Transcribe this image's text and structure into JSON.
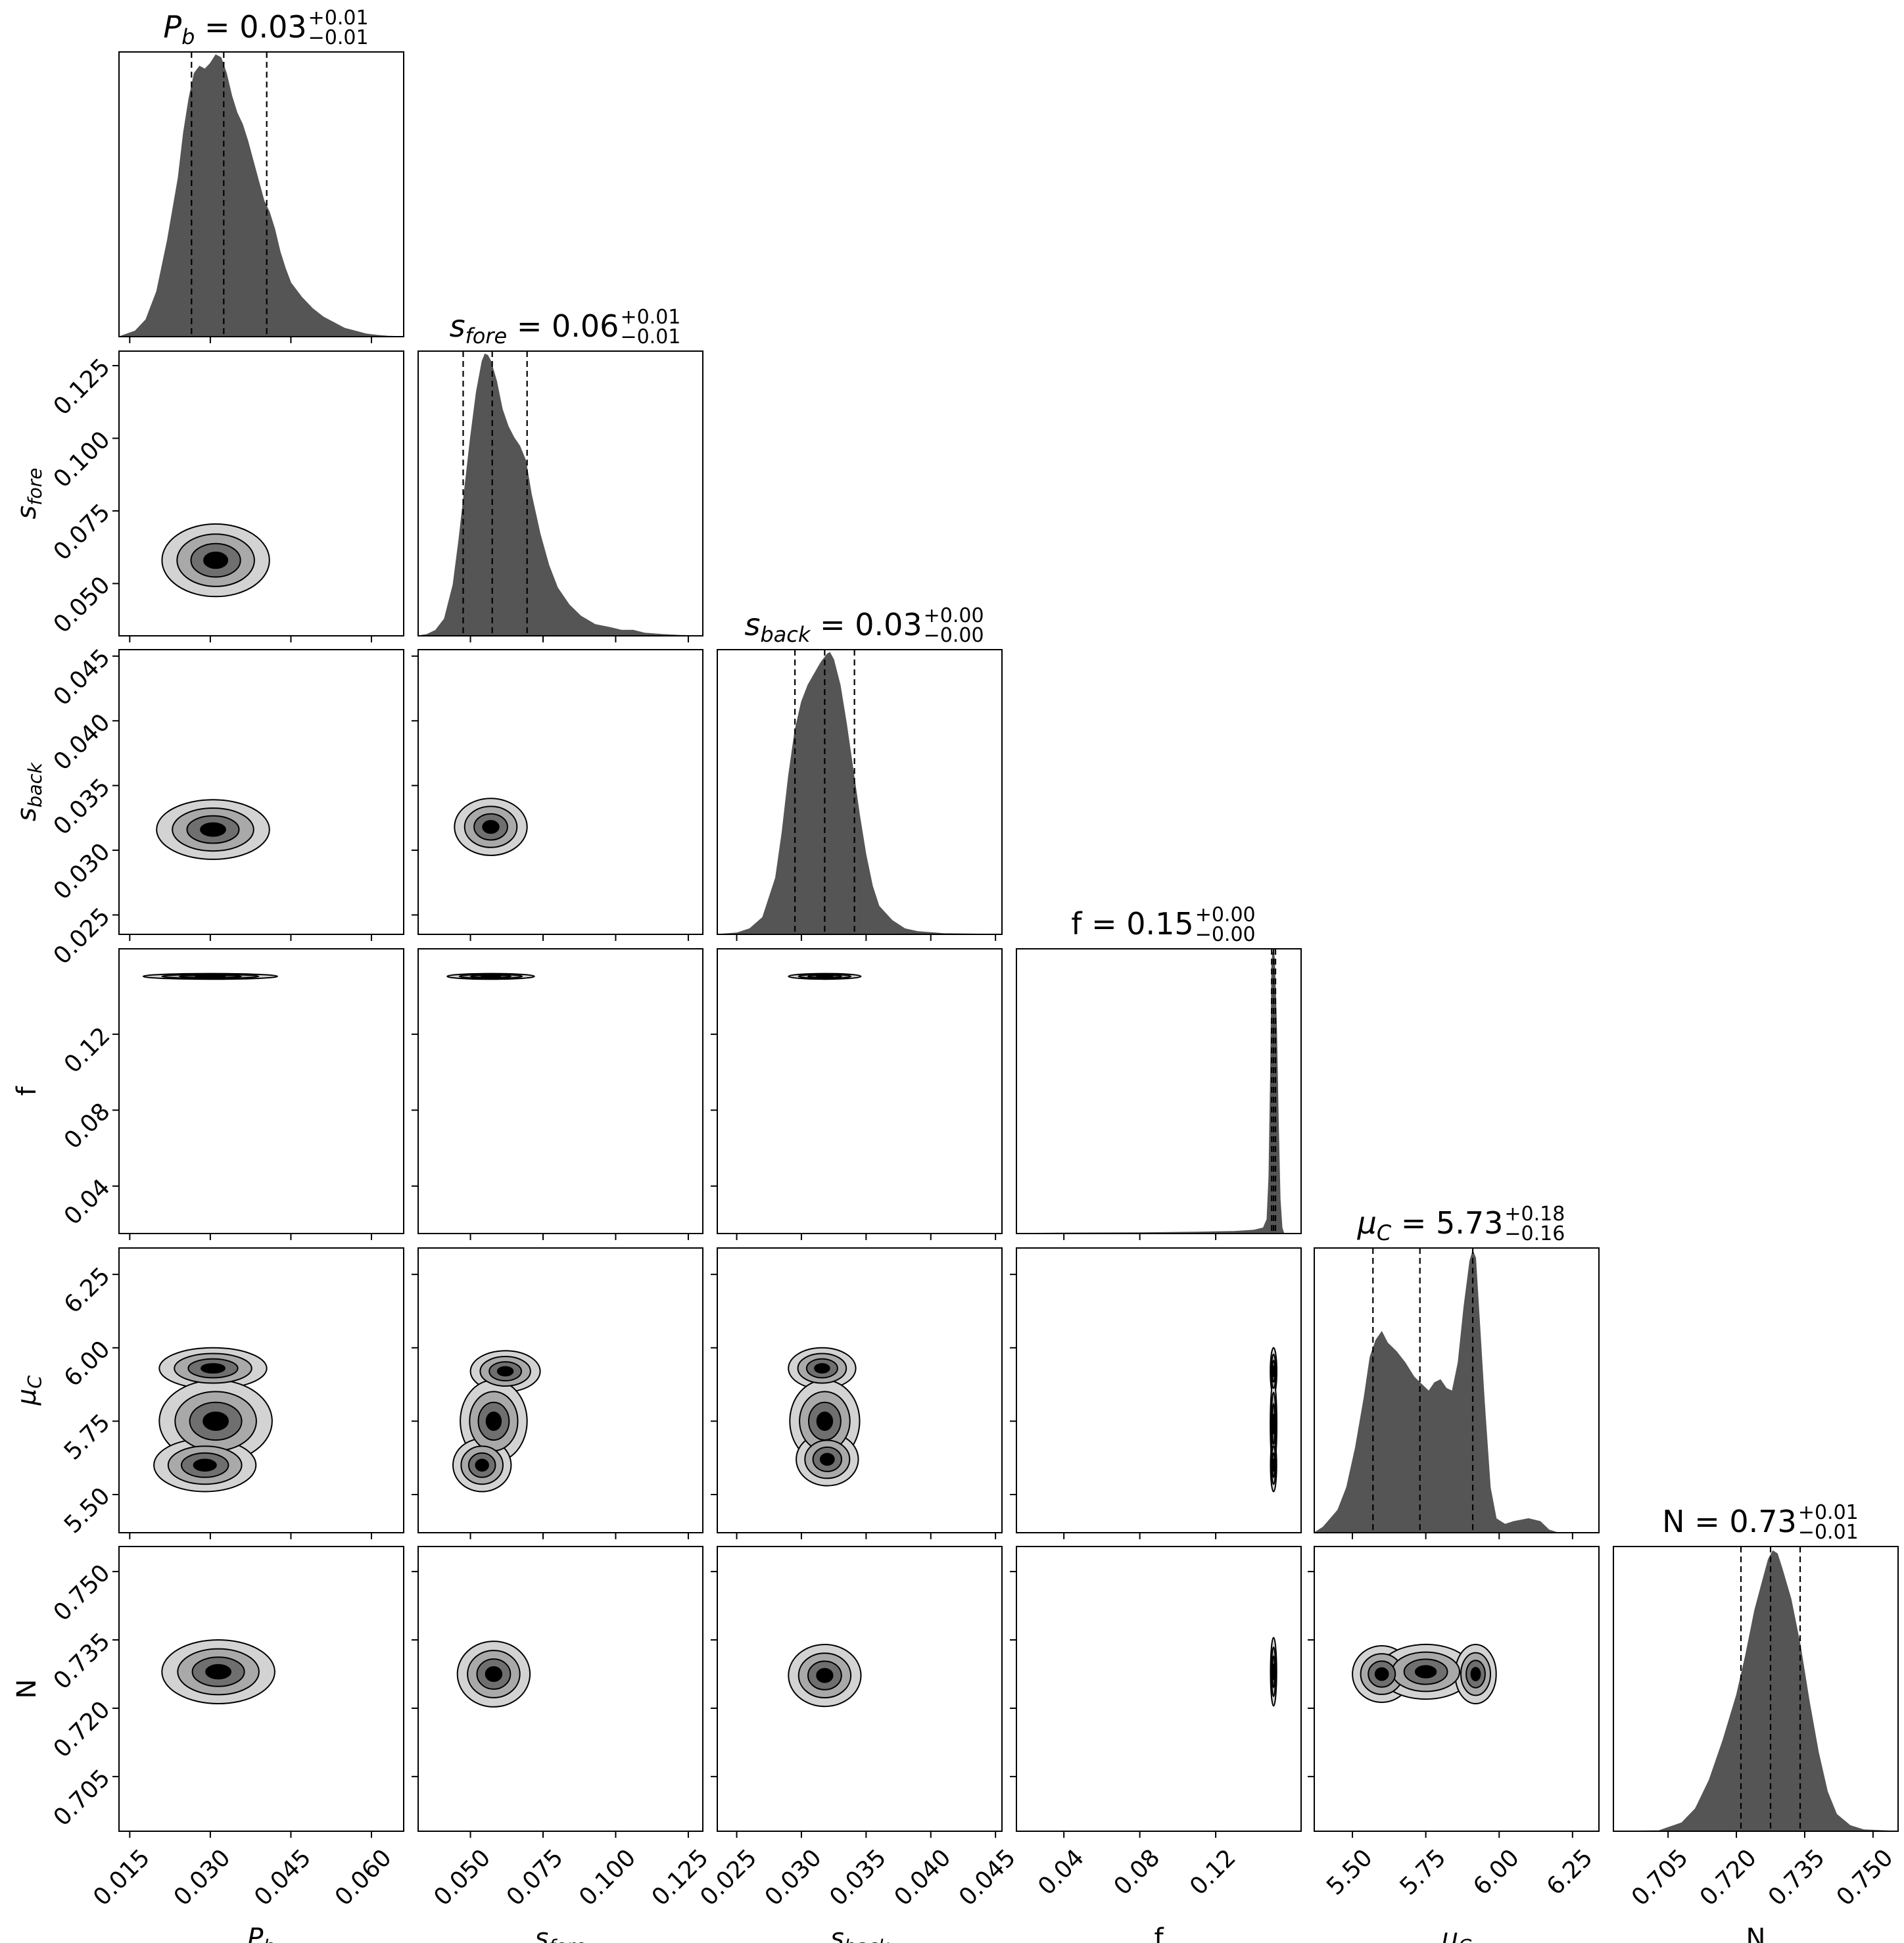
{
  "chart_data": {
    "type": "corner",
    "parameters": [
      {
        "id": "Pb",
        "label": "P",
        "sub": "b",
        "italic": true,
        "range": [
          0.013,
          0.066
        ],
        "ticks": [
          "0.015",
          "0.030",
          "0.045",
          "0.060"
        ],
        "tick_values": [
          0.015,
          0.03,
          0.045,
          0.06
        ],
        "median": 0.0325,
        "q16": 0.0265,
        "q84": 0.0405,
        "title_value": "0.03",
        "title_plus": "+0.01",
        "title_minus": "−0.01"
      },
      {
        "id": "sfore",
        "label": "s",
        "sub": "fore",
        "italic": true,
        "range": [
          0.032,
          0.13
        ],
        "ticks": [
          "0.050",
          "0.075",
          "0.100",
          "0.125"
        ],
        "tick_values": [
          0.05,
          0.075,
          0.1,
          0.125
        ],
        "median": 0.0575,
        "q16": 0.0475,
        "q84": 0.0695,
        "title_value": "0.06",
        "title_plus": "+0.01",
        "title_minus": "−0.01"
      },
      {
        "id": "sback",
        "label": "s",
        "sub": "back",
        "italic": true,
        "range": [
          0.0235,
          0.0455
        ],
        "ticks": [
          "0.025",
          "0.030",
          "0.035",
          "0.040",
          "0.045"
        ],
        "tick_values": [
          0.025,
          0.03,
          0.035,
          0.04,
          0.045
        ],
        "median": 0.0318,
        "q16": 0.0295,
        "q84": 0.0341,
        "title_value": "0.03",
        "title_plus": "+0.00",
        "title_minus": "−0.00"
      },
      {
        "id": "f",
        "label": "f",
        "sub": "",
        "italic": false,
        "range": [
          0.015,
          0.165
        ],
        "ticks": [
          "0.04",
          "0.08",
          "0.12"
        ],
        "tick_values": [
          0.04,
          0.08,
          0.12
        ],
        "median": 0.1505,
        "q16": 0.1495,
        "q84": 0.1515,
        "title_value": "0.15",
        "title_plus": "+0.00",
        "title_minus": "−0.00"
      },
      {
        "id": "muC",
        "label": "μ",
        "sub": "C",
        "italic": true,
        "range": [
          5.37,
          6.34
        ],
        "ticks": [
          "5.50",
          "5.75",
          "6.00",
          "6.25"
        ],
        "tick_values": [
          5.5,
          5.75,
          6.0,
          6.25
        ],
        "median": 5.73,
        "q16": 5.57,
        "q84": 5.91,
        "title_value": "5.73",
        "title_plus": "+0.18",
        "title_minus": "−0.16"
      },
      {
        "id": "N",
        "label": "N",
        "sub": "",
        "italic": false,
        "range": [
          0.693,
          0.7555
        ],
        "ticks": [
          "0.705",
          "0.720",
          "0.735",
          "0.750"
        ],
        "tick_values": [
          0.705,
          0.72,
          0.735,
          0.75
        ],
        "median": 0.7275,
        "q16": 0.721,
        "q84": 0.734,
        "title_value": "0.73",
        "title_plus": "+0.01",
        "title_minus": "−0.01"
      }
    ],
    "histograms": [
      [
        [
          0.013,
          0
        ],
        [
          0.016,
          0.02
        ],
        [
          0.018,
          0.06
        ],
        [
          0.02,
          0.16
        ],
        [
          0.022,
          0.34
        ],
        [
          0.024,
          0.56
        ],
        [
          0.025,
          0.72
        ],
        [
          0.026,
          0.84
        ],
        [
          0.027,
          0.93
        ],
        [
          0.028,
          0.955
        ],
        [
          0.029,
          0.945
        ],
        [
          0.03,
          0.965
        ],
        [
          0.031,
          0.995
        ],
        [
          0.032,
          0.985
        ],
        [
          0.033,
          0.93
        ],
        [
          0.034,
          0.85
        ],
        [
          0.035,
          0.79
        ],
        [
          0.036,
          0.75
        ],
        [
          0.037,
          0.69
        ],
        [
          0.038,
          0.62
        ],
        [
          0.039,
          0.55
        ],
        [
          0.04,
          0.48
        ],
        [
          0.041,
          0.44
        ],
        [
          0.042,
          0.38
        ],
        [
          0.043,
          0.3
        ],
        [
          0.044,
          0.24
        ],
        [
          0.045,
          0.19
        ],
        [
          0.047,
          0.14
        ],
        [
          0.049,
          0.1
        ],
        [
          0.051,
          0.07
        ],
        [
          0.053,
          0.05
        ],
        [
          0.055,
          0.03
        ],
        [
          0.057,
          0.02
        ],
        [
          0.059,
          0.01
        ],
        [
          0.061,
          0.005
        ],
        [
          0.063,
          0.002
        ],
        [
          0.066,
          0
        ]
      ],
      [
        [
          0.032,
          0
        ],
        [
          0.035,
          0.005
        ],
        [
          0.038,
          0.02
        ],
        [
          0.041,
          0.06
        ],
        [
          0.044,
          0.18
        ],
        [
          0.046,
          0.34
        ],
        [
          0.048,
          0.52
        ],
        [
          0.05,
          0.7
        ],
        [
          0.052,
          0.86
        ],
        [
          0.054,
          0.97
        ],
        [
          0.055,
          0.995
        ],
        [
          0.056,
          0.99
        ],
        [
          0.057,
          0.97
        ],
        [
          0.059,
          0.9
        ],
        [
          0.061,
          0.8
        ],
        [
          0.063,
          0.74
        ],
        [
          0.065,
          0.7
        ],
        [
          0.067,
          0.67
        ],
        [
          0.069,
          0.62
        ],
        [
          0.071,
          0.5
        ],
        [
          0.074,
          0.36
        ],
        [
          0.077,
          0.25
        ],
        [
          0.08,
          0.17
        ],
        [
          0.084,
          0.11
        ],
        [
          0.088,
          0.07
        ],
        [
          0.093,
          0.04
        ],
        [
          0.098,
          0.03
        ],
        [
          0.102,
          0.02
        ],
        [
          0.106,
          0.02
        ],
        [
          0.11,
          0.01
        ],
        [
          0.116,
          0.005
        ],
        [
          0.122,
          0.002
        ],
        [
          0.13,
          0
        ]
      ],
      [
        [
          0.0235,
          0
        ],
        [
          0.025,
          0.005
        ],
        [
          0.026,
          0.02
        ],
        [
          0.027,
          0.06
        ],
        [
          0.028,
          0.2
        ],
        [
          0.0285,
          0.36
        ],
        [
          0.029,
          0.56
        ],
        [
          0.0295,
          0.72
        ],
        [
          0.03,
          0.82
        ],
        [
          0.0305,
          0.88
        ],
        [
          0.031,
          0.92
        ],
        [
          0.0315,
          0.96
        ],
        [
          0.032,
          0.99
        ],
        [
          0.0322,
          0.995
        ],
        [
          0.0325,
          0.97
        ],
        [
          0.033,
          0.88
        ],
        [
          0.0335,
          0.74
        ],
        [
          0.034,
          0.58
        ],
        [
          0.0345,
          0.42
        ],
        [
          0.035,
          0.28
        ],
        [
          0.0355,
          0.17
        ],
        [
          0.036,
          0.1
        ],
        [
          0.037,
          0.05
        ],
        [
          0.038,
          0.02
        ],
        [
          0.039,
          0.01
        ],
        [
          0.041,
          0.003
        ],
        [
          0.0455,
          0
        ]
      ],
      [
        [
          0.015,
          0
        ],
        [
          0.02,
          0.001
        ],
        [
          0.04,
          0.002
        ],
        [
          0.08,
          0.003
        ],
        [
          0.11,
          0.005
        ],
        [
          0.13,
          0.008
        ],
        [
          0.14,
          0.012
        ],
        [
          0.145,
          0.02
        ],
        [
          0.147,
          0.05
        ],
        [
          0.148,
          0.2
        ],
        [
          0.149,
          0.62
        ],
        [
          0.1495,
          0.95
        ],
        [
          0.15,
          0.99
        ],
        [
          0.1505,
          1.0
        ],
        [
          0.151,
          0.97
        ],
        [
          0.152,
          0.75
        ],
        [
          0.153,
          0.4
        ],
        [
          0.154,
          0.12
        ],
        [
          0.155,
          0.02
        ],
        [
          0.156,
          0
        ]
      ],
      [
        [
          5.37,
          0
        ],
        [
          5.4,
          0.02
        ],
        [
          5.45,
          0.08
        ],
        [
          5.48,
          0.16
        ],
        [
          5.51,
          0.3
        ],
        [
          5.54,
          0.48
        ],
        [
          5.56,
          0.62
        ],
        [
          5.58,
          0.68
        ],
        [
          5.6,
          0.71
        ],
        [
          5.62,
          0.67
        ],
        [
          5.65,
          0.64
        ],
        [
          5.68,
          0.6
        ],
        [
          5.71,
          0.55
        ],
        [
          5.74,
          0.52
        ],
        [
          5.76,
          0.5
        ],
        [
          5.78,
          0.53
        ],
        [
          5.8,
          0.54
        ],
        [
          5.82,
          0.51
        ],
        [
          5.84,
          0.5
        ],
        [
          5.86,
          0.6
        ],
        [
          5.88,
          0.8
        ],
        [
          5.9,
          0.96
        ],
        [
          5.91,
          0.995
        ],
        [
          5.92,
          0.97
        ],
        [
          5.93,
          0.8
        ],
        [
          5.95,
          0.46
        ],
        [
          5.97,
          0.16
        ],
        [
          5.99,
          0.05
        ],
        [
          6.02,
          0.03
        ],
        [
          6.05,
          0.04
        ],
        [
          6.1,
          0.05
        ],
        [
          6.14,
          0.04
        ],
        [
          6.17,
          0.01
        ],
        [
          6.2,
          0
        ]
      ],
      [
        [
          0.693,
          0
        ],
        [
          0.703,
          0.002
        ],
        [
          0.708,
          0.03
        ],
        [
          0.711,
          0.08
        ],
        [
          0.714,
          0.18
        ],
        [
          0.717,
          0.32
        ],
        [
          0.72,
          0.48
        ],
        [
          0.722,
          0.62
        ],
        [
          0.724,
          0.78
        ],
        [
          0.726,
          0.9
        ],
        [
          0.727,
          0.96
        ],
        [
          0.728,
          0.99
        ],
        [
          0.729,
          0.98
        ],
        [
          0.73,
          0.93
        ],
        [
          0.732,
          0.82
        ],
        [
          0.734,
          0.66
        ],
        [
          0.736,
          0.46
        ],
        [
          0.738,
          0.28
        ],
        [
          0.74,
          0.14
        ],
        [
          0.742,
          0.06
        ],
        [
          0.745,
          0.02
        ],
        [
          0.748,
          0.005
        ],
        [
          0.7555,
          0
        ]
      ]
    ],
    "contour_levels": [
      "#d3d3d3",
      "#a9a9a9",
      "#6f6f6f",
      "#000000"
    ],
    "pairs": [
      {
        "x": 0,
        "y": 1,
        "blobs": [
          {
            "cx": 0.031,
            "cy": 0.058,
            "rx": 0.01,
            "ry": 0.0125
          }
        ]
      },
      {
        "x": 0,
        "y": 2,
        "blobs": [
          {
            "cx": 0.0305,
            "cy": 0.0316,
            "rx": 0.0105,
            "ry": 0.0023
          }
        ]
      },
      {
        "x": 1,
        "y": 2,
        "blobs": [
          {
            "cx": 0.057,
            "cy": 0.0318,
            "rx": 0.0125,
            "ry": 0.0022
          }
        ]
      },
      {
        "x": 0,
        "y": 3,
        "blobs": [
          {
            "cx": 0.03,
            "cy": 0.1505,
            "rx": 0.0125,
            "ry": 0.0015
          }
        ]
      },
      {
        "x": 1,
        "y": 3,
        "blobs": [
          {
            "cx": 0.057,
            "cy": 0.1505,
            "rx": 0.015,
            "ry": 0.0015
          }
        ]
      },
      {
        "x": 2,
        "y": 3,
        "blobs": [
          {
            "cx": 0.0318,
            "cy": 0.1505,
            "rx": 0.0028,
            "ry": 0.0015
          }
        ]
      },
      {
        "x": 0,
        "y": 4,
        "blobs": [
          {
            "cx": 0.0305,
            "cy": 5.93,
            "rx": 0.01,
            "ry": 0.07
          },
          {
            "cx": 0.031,
            "cy": 5.75,
            "rx": 0.0105,
            "ry": 0.14
          },
          {
            "cx": 0.029,
            "cy": 5.6,
            "rx": 0.0095,
            "ry": 0.09
          }
        ]
      },
      {
        "x": 1,
        "y": 4,
        "blobs": [
          {
            "cx": 0.062,
            "cy": 5.92,
            "rx": 0.012,
            "ry": 0.07
          },
          {
            "cx": 0.058,
            "cy": 5.75,
            "rx": 0.0115,
            "ry": 0.14
          },
          {
            "cx": 0.054,
            "cy": 5.6,
            "rx": 0.01,
            "ry": 0.09
          }
        ]
      },
      {
        "x": 2,
        "y": 4,
        "blobs": [
          {
            "cx": 0.0316,
            "cy": 5.93,
            "rx": 0.0026,
            "ry": 0.07
          },
          {
            "cx": 0.0318,
            "cy": 5.75,
            "rx": 0.0027,
            "ry": 0.14
          },
          {
            "cx": 0.032,
            "cy": 5.62,
            "rx": 0.0024,
            "ry": 0.09
          }
        ]
      },
      {
        "x": 3,
        "y": 4,
        "blobs": [
          {
            "cx": 0.1505,
            "cy": 5.92,
            "rx": 0.0017,
            "ry": 0.08
          },
          {
            "cx": 0.1505,
            "cy": 5.74,
            "rx": 0.0017,
            "ry": 0.15
          },
          {
            "cx": 0.1505,
            "cy": 5.6,
            "rx": 0.0016,
            "ry": 0.09
          }
        ]
      },
      {
        "x": 0,
        "y": 5,
        "blobs": [
          {
            "cx": 0.0315,
            "cy": 0.728,
            "rx": 0.0105,
            "ry": 0.007
          }
        ]
      },
      {
        "x": 1,
        "y": 5,
        "blobs": [
          {
            "cx": 0.058,
            "cy": 0.7275,
            "rx": 0.0125,
            "ry": 0.0072
          }
        ]
      },
      {
        "x": 2,
        "y": 5,
        "blobs": [
          {
            "cx": 0.0318,
            "cy": 0.7272,
            "rx": 0.0028,
            "ry": 0.0068
          }
        ]
      },
      {
        "x": 3,
        "y": 5,
        "blobs": [
          {
            "cx": 0.1505,
            "cy": 0.728,
            "rx": 0.0016,
            "ry": 0.0075
          }
        ]
      },
      {
        "x": 4,
        "y": 5,
        "blobs": [
          {
            "cx": 5.6,
            "cy": 0.7275,
            "rx": 0.1,
            "ry": 0.0062
          },
          {
            "cx": 5.75,
            "cy": 0.728,
            "rx": 0.16,
            "ry": 0.006
          },
          {
            "cx": 5.92,
            "cy": 0.7275,
            "rx": 0.07,
            "ry": 0.0065
          }
        ]
      }
    ]
  }
}
